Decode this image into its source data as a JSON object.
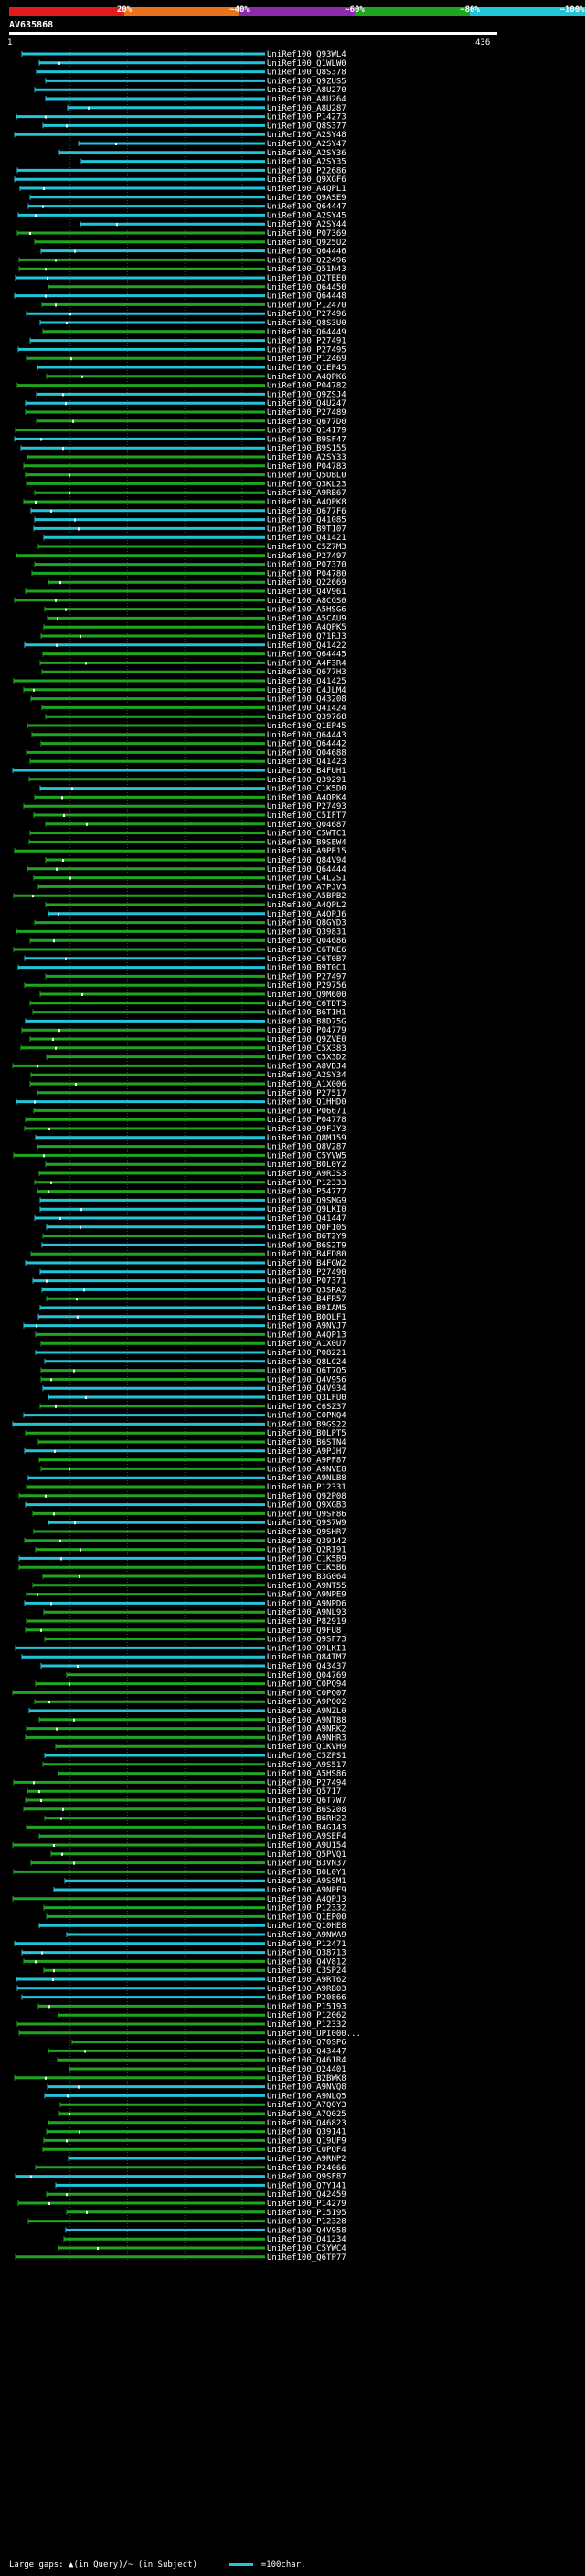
{
  "query": {
    "name": "AV635868",
    "length_start": "1",
    "length_end": "436"
  },
  "scale": {
    "labels": [
      "20%",
      "~40%",
      "~60%",
      "~80%",
      "~100%"
    ],
    "colors": [
      "#e21c1c",
      "#e8731c",
      "#8c2ba8",
      "#1fa51f",
      "#22c4d8"
    ]
  },
  "footer": {
    "gap_text": "Large gaps: ▲(in Query)/~ (in Subject)",
    "legend_text": "=100char."
  },
  "chart_data": {
    "type": "alignment",
    "x_range": [
      1,
      436
    ],
    "hits": [
      "UniRef100_Q93WL4",
      "UniRef100_Q1WLW0",
      "UniRef100_Q8S378",
      "UniRef100_Q9ZUS5",
      "UniRef100_A8U270",
      "UniRef100_A8U264",
      "UniRef100_A8U287",
      "UniRef100_P14273",
      "UniRef100_Q8S377",
      "UniRef100_A2SY48",
      "UniRef100_A2SY47",
      "UniRef100_A2SY36",
      "UniRef100_A2SY35",
      "UniRef100_P22686",
      "UniRef100_Q9XGF6",
      "UniRef100_A4QPL1",
      "UniRef100_Q9ASE9",
      "UniRef100_Q64447",
      "UniRef100_A2SY45",
      "UniRef100_A2SY44",
      "UniRef100_P07369",
      "UniRef100_Q925U2",
      "UniRef100_Q64446",
      "UniRef100_Q22496",
      "UniRef100_Q51N43",
      "UniRef100_Q2TEE0",
      "UniRef100_Q64450",
      "UniRef100_Q64448",
      "UniRef100_P12470",
      "UniRef100_P27496",
      "UniRef100_Q8S3U0",
      "UniRef100_Q64449",
      "UniRef100_P27491",
      "UniRef100_P27495",
      "UniRef100_P12469",
      "UniRef100_Q1EP45",
      "UniRef100_A4QPK6",
      "UniRef100_P04782",
      "UniRef100_Q9ZSJ4",
      "UniRef100_Q4U247",
      "UniRef100_P27489",
      "UniRef100_Q677D0",
      "UniRef100_Q14179",
      "UniRef100_B9SF47",
      "UniRef100_B9S155",
      "UniRef100_A2SY33",
      "UniRef100_P04783",
      "UniRef100_Q5UBL0",
      "UniRef100_Q3KL23",
      "UniRef100_A9RB67",
      "UniRef100_A4QPK8",
      "UniRef100_Q677F6",
      "UniRef100_Q41085",
      "UniRef100_B9T107",
      "UniRef100_Q41421",
      "UniRef100_C5Z7M3",
      "UniRef100_P27497",
      "UniRef100_P07370",
      "UniRef100_P04780",
      "UniRef100_Q22669",
      "UniRef100_Q4V961",
      "UniRef100_A8CGS0",
      "UniRef100_A5HSG6",
      "UniRef100_A5CAU9",
      "UniRef100_A4QPK5",
      "UniRef100_Q71RJ3",
      "UniRef100_Q41422",
      "UniRef100_Q64445",
      "UniRef100_A4F3R4",
      "UniRef100_Q677H3",
      "UniRef100_Q41425",
      "UniRef100_C4JLM4",
      "UniRef100_Q43208",
      "UniRef100_Q41424",
      "UniRef100_Q39768",
      "UniRef100_Q1EP45",
      "UniRef100_Q64443",
      "UniRef100_Q64442",
      "UniRef100_Q04688",
      "UniRef100_Q41423",
      "UniRef100_B4FUH1",
      "UniRef100_Q39291",
      "UniRef100_C1K5D0",
      "UniRef100_A4QPK4",
      "UniRef100_P27493",
      "UniRef100_C5IFT7",
      "UniRef100_Q04687",
      "UniRef100_C5WTC1",
      "UniRef100_B9SEW4",
      "UniRef100_A9PE15",
      "UniRef100_Q84V94",
      "UniRef100_Q64444",
      "UniRef100_C4L2S1",
      "UniRef100_A7PJV3",
      "UniRef100_A5BPB2",
      "UniRef100_A4QPL2",
      "UniRef100_A4QPJ6",
      "UniRef100_Q8GYD3",
      "UniRef100_Q39831",
      "UniRef100_Q04686",
      "UniRef100_C6TNE6",
      "UniRef100_C6T0B7",
      "UniRef100_B9T0C1",
      "UniRef100_P27497",
      "UniRef100_P29756",
      "UniRef100_Q9M600",
      "UniRef100_C6TDT3",
      "UniRef100_B6T1H1",
      "UniRef100_B8D75G",
      "UniRef100_P04779",
      "UniRef100_Q9ZVE0",
      "UniRef100_C5X383",
      "UniRef100_C5X3D2",
      "UniRef100_A8VDJ4",
      "UniRef100_A2SY34",
      "UniRef100_A1X006",
      "UniRef100_P27517",
      "UniRef100_Q1HHD0",
      "UniRef100_P06671",
      "UniRef100_P04778",
      "UniRef100_Q9FJY3",
      "UniRef100_Q8M159",
      "UniRef100_Q8V287",
      "UniRef100_C5YVW5",
      "UniRef100_B0L0Y2",
      "UniRef100_A9RJS3",
      "UniRef100_P12333",
      "UniRef100_P54777",
      "UniRef100_Q9SMG9",
      "UniRef100_Q9LKI0",
      "UniRef100_Q41447",
      "UniRef100_Q0F105",
      "UniRef100_B6T2Y9",
      "UniRef100_B6S2T9",
      "UniRef100_B4FD80",
      "UniRef100_B4FGW2",
      "UniRef100_P27490",
      "UniRef100_P07371",
      "UniRef100_Q3SRA2",
      "UniRef100_B4FR57",
      "UniRef100_B9IAM5",
      "UniRef100_B0OLF1",
      "UniRef100_A9NVJ7",
      "UniRef100_A4QP13",
      "UniRef100_A1X0U7",
      "UniRef100_P08221",
      "UniRef100_Q8LC24",
      "UniRef100_Q6T7Q5",
      "UniRef100_Q4V956",
      "UniRef100_Q4V934",
      "UniRef100_Q3LFU0",
      "UniRef100_C6SZ37",
      "UniRef100_C0PNQ4",
      "UniRef100_B9GS22",
      "UniRef100_B0LPT5",
      "UniRef100_B6STN4",
      "UniRef100_A9PJH7",
      "UniRef100_A9PF87",
      "UniRef100_A9NVE8",
      "UniRef100_A9NLB8",
      "UniRef100_P12331",
      "UniRef100_Q92P08",
      "UniRef100_Q9XGB3",
      "UniRef100_Q9SF86",
      "UniRef100_Q9S7W9",
      "UniRef100_Q9SHR7",
      "UniRef100_Q39142",
      "UniRef100_Q2RI91",
      "UniRef100_C1K5B9",
      "UniRef100_C1K5B6",
      "UniRef100_B3G064",
      "UniRef100_A9NT55",
      "UniRef100_A9NPE9",
      "UniRef100_A9NPD6",
      "UniRef100_A9NL93",
      "UniRef100_P82919",
      "UniRef100_Q9FU8",
      "UniRef100_Q9SF73",
      "UniRef100_Q9LKI1",
      "UniRef100_Q84TM7",
      "UniRef100_Q43437",
      "UniRef100_Q04769",
      "UniRef100_C0PQ94",
      "UniRef100_C0PQ07",
      "UniRef100_A9PQ02",
      "UniRef100_A9NZL0",
      "UniRef100_A9NT88",
      "UniRef100_A9NRK2",
      "UniRef100_A9NHR3",
      "UniRef100_Q1KVH9",
      "UniRef100_C5ZPS1",
      "UniRef100_A9S517",
      "UniRef100_A5HS86",
      "UniRef100_P27494",
      "UniRef100_Q5717",
      "UniRef100_Q6T7W7",
      "UniRef100_B6S208",
      "UniRef100_B6RH22",
      "UniRef100_B4G143",
      "UniRef100_A9SEF4",
      "UniRef100_A9U154",
      "UniRef100_Q5PVQ1",
      "UniRef100_B3VN37",
      "UniRef100_B0L0Y1",
      "UniRef100_A9SSM1",
      "UniRef100_A9NPF9",
      "UniRef100_A4QPJ3",
      "UniRef100_P12332",
      "UniRef100_Q1EP00",
      "UniRef100_Q10HE8",
      "UniRef100_A9NWA9",
      "UniRef100_P12471",
      "UniRef100_Q38713",
      "UniRef100_Q4V812",
      "UniRef100_C3SP24",
      "UniRef100_A9RT62",
      "UniRef100_A9RB03",
      "UniRef100_P20866",
      "UniRef100_P15193",
      "UniRef100_P12062",
      "UniRef100_P12332",
      "UniRef100_UPI000...",
      "UniRef100_Q70SP6",
      "UniRef100_Q43447",
      "UniRef100_Q461R4",
      "UniRef100_Q24401",
      "UniRef100_B2BWK8",
      "UniRef100_A9NVQ8",
      "UniRef100_A9NLQ5",
      "UniRef100_A7Q0Y3",
      "UniRef100_A7Q025",
      "UniRef100_Q46823",
      "UniRef100_Q39141",
      "UniRef100_Q19UF9",
      "UniRef100_C0PQF4",
      "UniRef100_A9RNP2",
      "UniRef100_P24066",
      "UniRef100_Q9SF87",
      "UniRef100_Q7Y141",
      "UniRef100_Q42459",
      "UniRef100_P14279",
      "UniRef100_P15195",
      "UniRef100_P12328",
      "UniRef100_Q4V958",
      "UniRef100_Q41234",
      "UniRef100_C5YWC4",
      "UniRef100_Q6TP77"
    ]
  }
}
